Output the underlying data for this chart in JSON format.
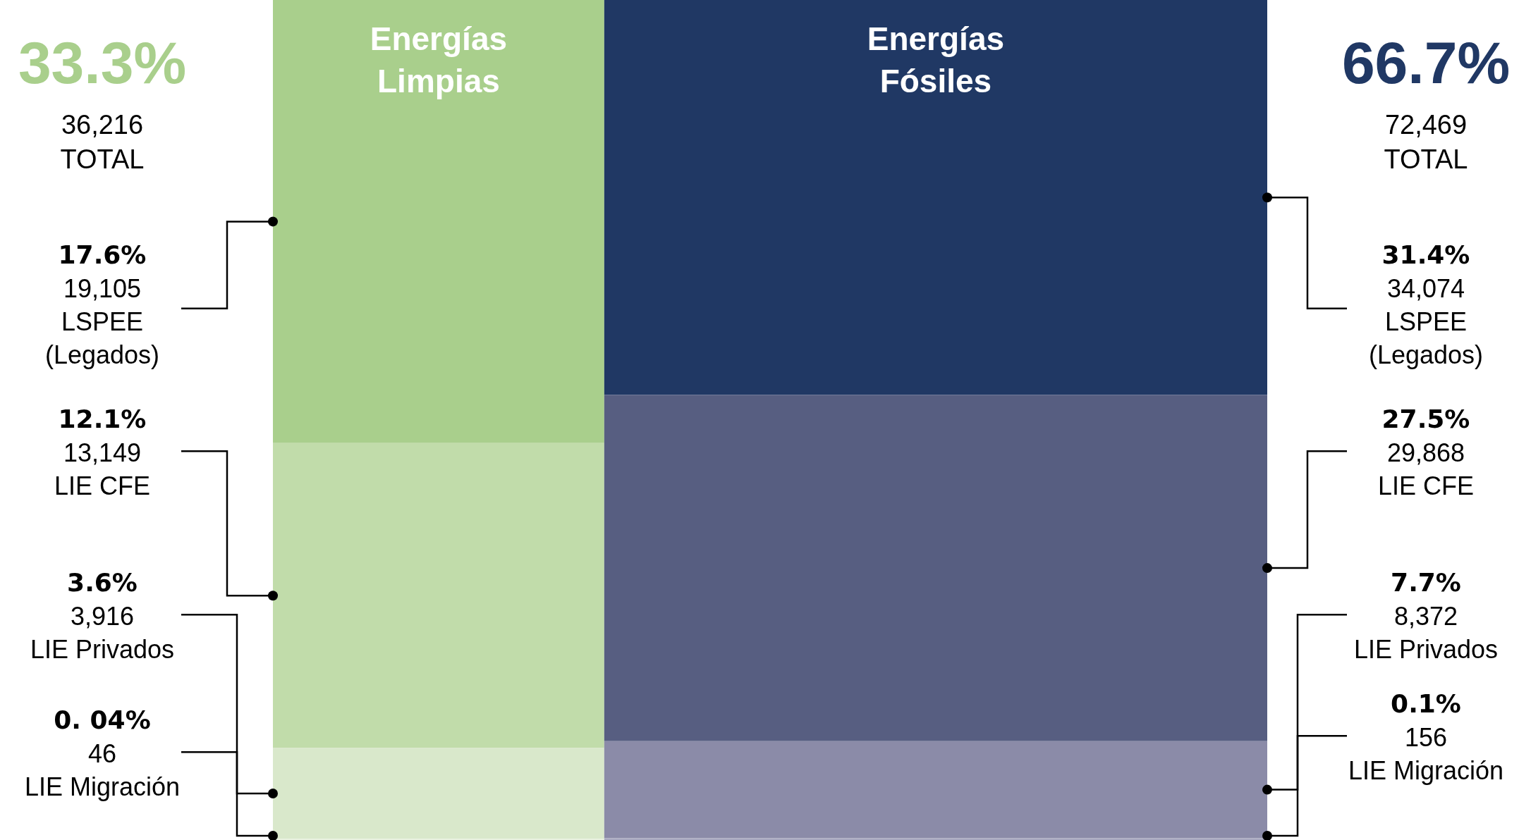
{
  "chart_data": {
    "type": "other",
    "categories": [
      "Energías\nLimpias",
      "Energías\nFósiles"
    ],
    "totals": [
      "36,216",
      "72,469"
    ],
    "annotations": [
      {
        "text": "33.3%",
        "x": "Energías\nLimpias"
      },
      {
        "text": "TOTAL",
        "x": "Energías\nLimpias"
      },
      {
        "text": "17.6%",
        "x": "Energías\nLimpias"
      },
      {
        "text": "12.1%",
        "x": "Energías\nLimpias"
      },
      {
        "text": "3.6%",
        "x": "Energías\nLimpias"
      },
      {
        "text": "0. 04%",
        "x": "Energías\nLimpias"
      },
      {
        "text": "66.7%",
        "x": "Energías\nFósiles"
      },
      {
        "text": "TOTAL",
        "x": "Energías\nFósiles"
      },
      {
        "text": "31.4%",
        "x": "Energías\nFósiles"
      },
      {
        "text": "27.5%",
        "x": "Energías\nFósiles"
      },
      {
        "text": "7.7%",
        "x": "Energías\nFósiles"
      },
      {
        "text": "0.1%",
        "x": "Energías\nFósiles"
      }
    ],
    "series": [
      {
        "name": "LSPEE\n(Legados)",
        "values": [
          19105,
          34074
        ],
        "colors": [
          "#a9cf8c",
          "#203864"
        ],
        "value_labels": [
          "19,105",
          "34,074"
        ]
      },
      {
        "name": "LIE CFE",
        "values": [
          13149,
          29868
        ],
        "colors": [
          "#c1dcaa",
          "#575e81"
        ],
        "value_labels": [
          "13,149",
          "29,868"
        ]
      },
      {
        "name": "LIE Privados",
        "values": [
          3916,
          8372
        ],
        "colors": [
          "#d9e8cb",
          "#8b8ba8"
        ],
        "value_labels": [
          "3,916",
          "8,372"
        ]
      },
      {
        "name": "LIE Migración",
        "values": [
          46,
          156
        ],
        "colors": [
          "#e8f1df",
          "#a9a9c0"
        ],
        "value_labels": [
          "46",
          "156"
        ]
      }
    ]
  }
}
